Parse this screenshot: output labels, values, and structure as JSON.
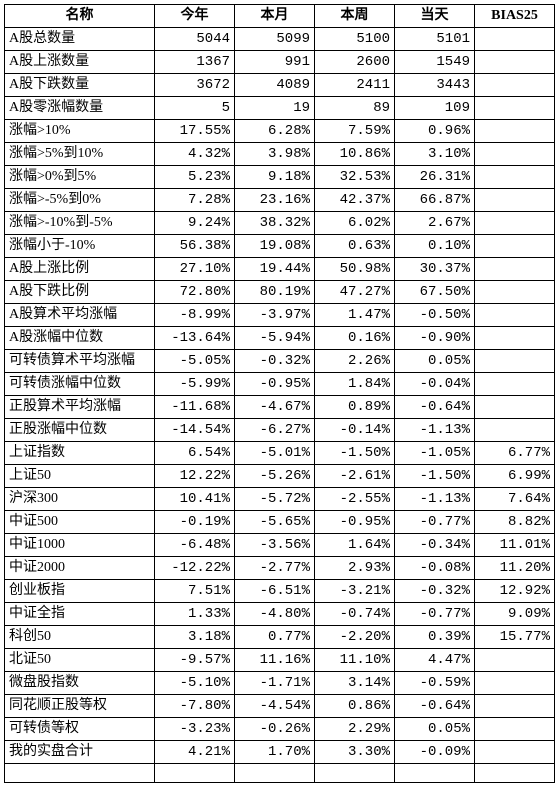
{
  "columns": [
    "名称",
    "今年",
    "本月",
    "本周",
    "当天",
    "BIAS25"
  ],
  "rows": [
    [
      "A股总数量",
      "5044",
      "5099",
      "5100",
      "5101",
      ""
    ],
    [
      "A股上涨数量",
      "1367",
      "991",
      "2600",
      "1549",
      ""
    ],
    [
      "A股下跌数量",
      "3672",
      "4089",
      "2411",
      "3443",
      ""
    ],
    [
      "A股零涨幅数量",
      "5",
      "19",
      "89",
      "109",
      ""
    ],
    [
      "涨幅>10%",
      "17.55%",
      "6.28%",
      "7.59%",
      "0.96%",
      ""
    ],
    [
      "涨幅>5%到10%",
      "4.32%",
      "3.98%",
      "10.86%",
      "3.10%",
      ""
    ],
    [
      "涨幅>0%到5%",
      "5.23%",
      "9.18%",
      "32.53%",
      "26.31%",
      ""
    ],
    [
      "涨幅>-5%到0%",
      "7.28%",
      "23.16%",
      "42.37%",
      "66.87%",
      ""
    ],
    [
      "涨幅>-10%到-5%",
      "9.24%",
      "38.32%",
      "6.02%",
      "2.67%",
      ""
    ],
    [
      "涨幅小于-10%",
      "56.38%",
      "19.08%",
      "0.63%",
      "0.10%",
      ""
    ],
    [
      "A股上涨比例",
      "27.10%",
      "19.44%",
      "50.98%",
      "30.37%",
      ""
    ],
    [
      "A股下跌比例",
      "72.80%",
      "80.19%",
      "47.27%",
      "67.50%",
      ""
    ],
    [
      "A股算术平均涨幅",
      "-8.99%",
      "-3.97%",
      "1.47%",
      "-0.50%",
      ""
    ],
    [
      "A股涨幅中位数",
      "-13.64%",
      "-5.94%",
      "0.16%",
      "-0.90%",
      ""
    ],
    [
      "可转债算术平均涨幅",
      "-5.05%",
      "-0.32%",
      "2.26%",
      "0.05%",
      ""
    ],
    [
      "可转债涨幅中位数",
      "-5.99%",
      "-0.95%",
      "1.84%",
      "-0.04%",
      ""
    ],
    [
      "正股算术平均涨幅",
      "-11.68%",
      "-4.67%",
      "0.89%",
      "-0.64%",
      ""
    ],
    [
      "正股涨幅中位数",
      "-14.54%",
      "-6.27%",
      "-0.14%",
      "-1.13%",
      ""
    ],
    [
      "上证指数",
      "6.54%",
      "-5.01%",
      "-1.50%",
      "-1.05%",
      "6.77%"
    ],
    [
      "上证50",
      "12.22%",
      "-5.26%",
      "-2.61%",
      "-1.50%",
      "6.99%"
    ],
    [
      "沪深300",
      "10.41%",
      "-5.72%",
      "-2.55%",
      "-1.13%",
      "7.64%"
    ],
    [
      "中证500",
      "-0.19%",
      "-5.65%",
      "-0.95%",
      "-0.77%",
      "8.82%"
    ],
    [
      "中证1000",
      "-6.48%",
      "-3.56%",
      "1.64%",
      "-0.34%",
      "11.01%"
    ],
    [
      "中证2000",
      "-12.22%",
      "-2.77%",
      "2.93%",
      "-0.08%",
      "11.20%"
    ],
    [
      "创业板指",
      "7.51%",
      "-6.51%",
      "-3.21%",
      "-0.32%",
      "12.92%"
    ],
    [
      "中证全指",
      "1.33%",
      "-4.80%",
      "-0.74%",
      "-0.77%",
      "9.09%"
    ],
    [
      "科创50",
      "3.18%",
      "0.77%",
      "-2.20%",
      "0.39%",
      "15.77%"
    ],
    [
      "北证50",
      "-9.57%",
      "11.16%",
      "11.10%",
      "4.47%",
      ""
    ],
    [
      "微盘股指数",
      "-5.10%",
      "-1.71%",
      "3.14%",
      "-0.59%",
      ""
    ],
    [
      "同花顺正股等权",
      "-7.80%",
      "-4.54%",
      "0.86%",
      "-0.64%",
      ""
    ],
    [
      "可转债等权",
      "-3.23%",
      "-0.26%",
      "2.29%",
      "0.05%",
      ""
    ],
    [
      "我的实盘合计",
      "4.21%",
      "1.70%",
      "3.30%",
      "-0.09%",
      ""
    ]
  ]
}
